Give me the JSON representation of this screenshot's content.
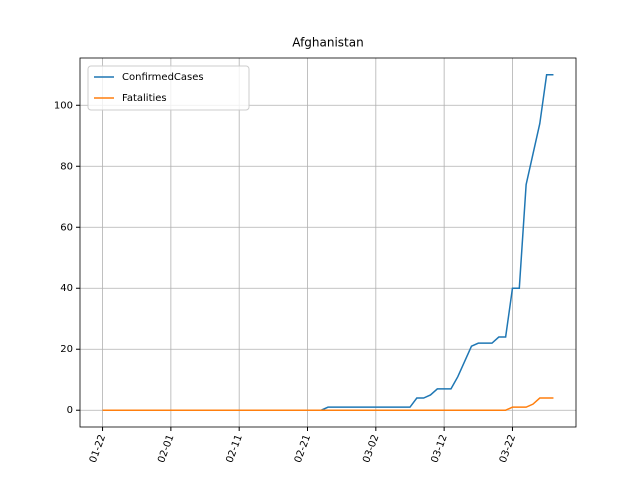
{
  "chart_data": {
    "type": "line",
    "title": "Afghanistan",
    "x": [
      "01-22",
      "01-23",
      "01-24",
      "01-25",
      "01-26",
      "01-27",
      "01-28",
      "01-29",
      "01-30",
      "01-31",
      "02-01",
      "02-02",
      "02-03",
      "02-04",
      "02-05",
      "02-06",
      "02-07",
      "02-08",
      "02-09",
      "02-10",
      "02-11",
      "02-12",
      "02-13",
      "02-14",
      "02-15",
      "02-16",
      "02-17",
      "02-18",
      "02-19",
      "02-20",
      "02-21",
      "02-22",
      "02-23",
      "02-24",
      "02-25",
      "02-26",
      "02-27",
      "02-28",
      "02-29",
      "03-01",
      "03-02",
      "03-03",
      "03-04",
      "03-05",
      "03-06",
      "03-07",
      "03-08",
      "03-09",
      "03-10",
      "03-11",
      "03-12",
      "03-13",
      "03-14",
      "03-15",
      "03-16",
      "03-17",
      "03-18",
      "03-19",
      "03-20",
      "03-21",
      "03-22",
      "03-23",
      "03-24",
      "03-25",
      "03-26",
      "03-27",
      "03-28"
    ],
    "series": [
      {
        "name": "ConfirmedCases",
        "color": "#1f77b4",
        "values": [
          0,
          0,
          0,
          0,
          0,
          0,
          0,
          0,
          0,
          0,
          0,
          0,
          0,
          0,
          0,
          0,
          0,
          0,
          0,
          0,
          0,
          0,
          0,
          0,
          0,
          0,
          0,
          0,
          0,
          0,
          0,
          0,
          0,
          1,
          1,
          1,
          1,
          1,
          1,
          1,
          1,
          1,
          1,
          1,
          1,
          1,
          4,
          4,
          5,
          7,
          7,
          7,
          11,
          16,
          21,
          22,
          22,
          22,
          24,
          24,
          40,
          40,
          74,
          84,
          94,
          110,
          110
        ]
      },
      {
        "name": "Fatalities",
        "color": "#ff7f0e",
        "values": [
          0,
          0,
          0,
          0,
          0,
          0,
          0,
          0,
          0,
          0,
          0,
          0,
          0,
          0,
          0,
          0,
          0,
          0,
          0,
          0,
          0,
          0,
          0,
          0,
          0,
          0,
          0,
          0,
          0,
          0,
          0,
          0,
          0,
          0,
          0,
          0,
          0,
          0,
          0,
          0,
          0,
          0,
          0,
          0,
          0,
          0,
          0,
          0,
          0,
          0,
          0,
          0,
          0,
          0,
          0,
          0,
          0,
          0,
          0,
          0,
          1,
          1,
          1,
          2,
          4,
          4,
          4
        ]
      }
    ],
    "xticks": [
      "01-22",
      "02-01",
      "02-11",
      "02-21",
      "03-02",
      "03-12",
      "03-22"
    ],
    "ylim": [
      -5.5,
      115.5
    ],
    "yticks": [
      0,
      20,
      40,
      60,
      80,
      100
    ],
    "grid": true,
    "legend": "upper-left"
  }
}
